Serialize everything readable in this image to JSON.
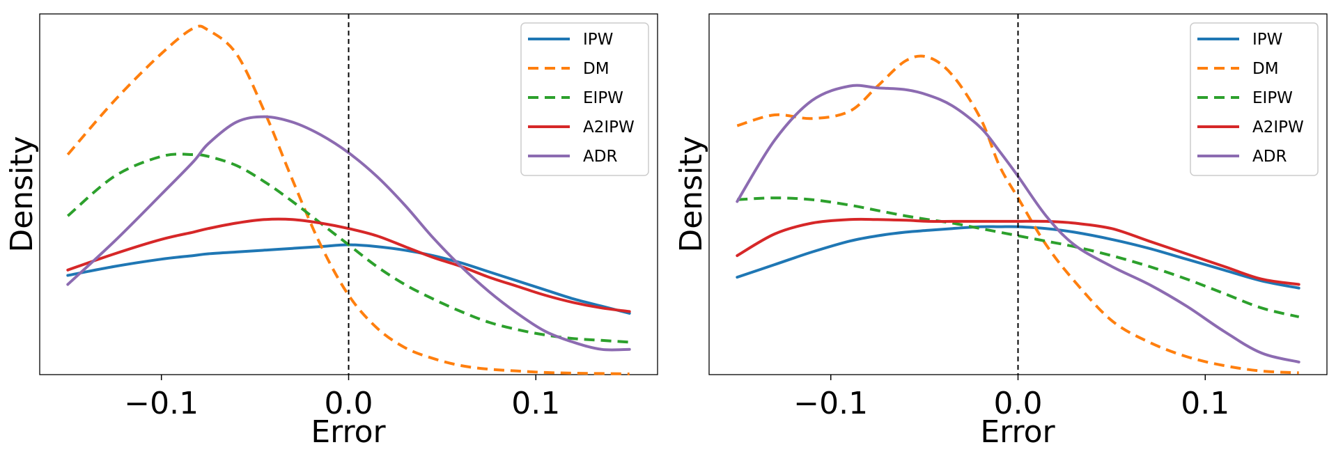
{
  "chart_data": [
    {
      "type": "line",
      "panel": "left",
      "title": "",
      "xlabel": "Error",
      "ylabel": "Density",
      "xlim": [
        -0.165,
        0.165
      ],
      "ylim": [
        0,
        1
      ],
      "xticks": [
        -0.1,
        0.0,
        0.1
      ],
      "xtick_labels": [
        "−0.1",
        "0.0",
        "0.1"
      ],
      "yticks_shown": false,
      "vline_x": 0.0,
      "legend_position": "top-right",
      "x": [
        -0.15,
        -0.125,
        -0.1,
        -0.083,
        -0.075,
        -0.06,
        -0.045,
        -0.03,
        -0.015,
        0.0,
        0.015,
        0.03,
        0.045,
        0.06,
        0.075,
        0.09,
        0.105,
        0.12,
        0.135,
        0.15
      ],
      "series": [
        {
          "name": "IPW",
          "color": "#1f77b4",
          "dash": "solid",
          "values": [
            0.275,
            0.3,
            0.32,
            0.33,
            0.335,
            0.34,
            0.345,
            0.35,
            0.355,
            0.36,
            0.355,
            0.345,
            0.33,
            0.31,
            0.285,
            0.26,
            0.235,
            0.21,
            0.19,
            0.17
          ]
        },
        {
          "name": "DM",
          "color": "#ff7f0e",
          "dash": "dashed",
          "values": [
            0.61,
            0.76,
            0.89,
            0.96,
            0.955,
            0.89,
            0.73,
            0.54,
            0.36,
            0.22,
            0.13,
            0.075,
            0.045,
            0.025,
            0.015,
            0.01,
            0.006,
            0.004,
            0.003,
            0.002
          ]
        },
        {
          "name": "EIPW",
          "color": "#2ca02c",
          "dash": "dashed",
          "values": [
            0.44,
            0.55,
            0.605,
            0.61,
            0.605,
            0.58,
            0.535,
            0.48,
            0.42,
            0.36,
            0.3,
            0.25,
            0.21,
            0.175,
            0.145,
            0.125,
            0.11,
            0.1,
            0.095,
            0.09
          ]
        },
        {
          "name": "A2IPW",
          "color": "#d62728",
          "dash": "solid",
          "values": [
            0.29,
            0.335,
            0.375,
            0.395,
            0.405,
            0.42,
            0.43,
            0.43,
            0.42,
            0.405,
            0.385,
            0.355,
            0.325,
            0.3,
            0.27,
            0.245,
            0.22,
            0.2,
            0.185,
            0.175
          ]
        },
        {
          "name": "ADR",
          "color": "#8c6bb1",
          "dash": "solid",
          "values": [
            0.25,
            0.37,
            0.5,
            0.59,
            0.64,
            0.7,
            0.715,
            0.7,
            0.665,
            0.615,
            0.55,
            0.47,
            0.38,
            0.3,
            0.23,
            0.17,
            0.12,
            0.09,
            0.07,
            0.07
          ]
        }
      ]
    },
    {
      "type": "line",
      "panel": "right",
      "title": "",
      "xlabel": "Error",
      "ylabel": "Density",
      "xlim": [
        -0.165,
        0.165
      ],
      "ylim": [
        0,
        1
      ],
      "xticks": [
        -0.1,
        0.0,
        0.1
      ],
      "xtick_labels": [
        "−0.1",
        "0.0",
        "0.1"
      ],
      "yticks_shown": false,
      "vline_x": 0.0,
      "legend_position": "top-right",
      "x": [
        -0.15,
        -0.13,
        -0.11,
        -0.09,
        -0.075,
        -0.06,
        -0.048,
        -0.035,
        -0.02,
        -0.01,
        0.0,
        0.015,
        0.03,
        0.05,
        0.07,
        0.09,
        0.11,
        0.13,
        0.15
      ],
      "series": [
        {
          "name": "IPW",
          "color": "#1f77b4",
          "dash": "solid",
          "values": [
            0.27,
            0.305,
            0.34,
            0.37,
            0.385,
            0.395,
            0.4,
            0.405,
            0.41,
            0.41,
            0.41,
            0.405,
            0.395,
            0.375,
            0.35,
            0.32,
            0.29,
            0.26,
            0.24
          ]
        },
        {
          "name": "DM",
          "color": "#ff7f0e",
          "dash": "dashed",
          "values": [
            0.69,
            0.72,
            0.71,
            0.73,
            0.8,
            0.87,
            0.88,
            0.83,
            0.71,
            0.58,
            0.49,
            0.36,
            0.26,
            0.15,
            0.09,
            0.05,
            0.025,
            0.01,
            0.005
          ]
        },
        {
          "name": "EIPW",
          "color": "#2ca02c",
          "dash": "dashed",
          "values": [
            0.485,
            0.49,
            0.485,
            0.47,
            0.455,
            0.44,
            0.43,
            0.42,
            0.405,
            0.395,
            0.385,
            0.37,
            0.355,
            0.33,
            0.3,
            0.265,
            0.225,
            0.185,
            0.16
          ]
        },
        {
          "name": "A2IPW",
          "color": "#d62728",
          "dash": "solid",
          "values": [
            0.33,
            0.39,
            0.42,
            0.43,
            0.43,
            0.428,
            0.425,
            0.425,
            0.425,
            0.425,
            0.425,
            0.425,
            0.42,
            0.405,
            0.37,
            0.335,
            0.3,
            0.265,
            0.25
          ]
        },
        {
          "name": "ADR",
          "color": "#8c6bb1",
          "dash": "solid",
          "values": [
            0.48,
            0.65,
            0.76,
            0.8,
            0.795,
            0.79,
            0.775,
            0.745,
            0.685,
            0.62,
            0.55,
            0.44,
            0.36,
            0.3,
            0.25,
            0.19,
            0.12,
            0.06,
            0.035
          ]
        }
      ]
    }
  ]
}
